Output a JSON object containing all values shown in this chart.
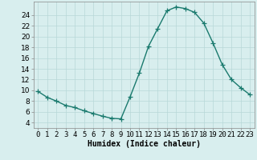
{
  "x": [
    0,
    1,
    2,
    3,
    4,
    5,
    6,
    7,
    8,
    9,
    10,
    11,
    12,
    13,
    14,
    15,
    16,
    17,
    18,
    19,
    20,
    21,
    22,
    23
  ],
  "y": [
    9.8,
    8.7,
    8.0,
    7.2,
    6.8,
    6.2,
    5.7,
    5.2,
    4.8,
    4.7,
    8.8,
    13.2,
    18.2,
    21.5,
    24.8,
    25.5,
    25.2,
    24.5,
    22.5,
    18.8,
    14.8,
    12.0,
    10.5,
    9.2
  ],
  "line_color": "#1a7a6e",
  "marker": "+",
  "marker_size": 4,
  "marker_edge_width": 0.9,
  "bg_color": "#d8eeee",
  "grid_color": "#b8d8d8",
  "xlabel": "Humidex (Indice chaleur)",
  "xlim": [
    -0.5,
    23.5
  ],
  "ylim": [
    3,
    26.5
  ],
  "yticks": [
    4,
    6,
    8,
    10,
    12,
    14,
    16,
    18,
    20,
    22,
    24
  ],
  "xticks": [
    0,
    1,
    2,
    3,
    4,
    5,
    6,
    7,
    8,
    9,
    10,
    11,
    12,
    13,
    14,
    15,
    16,
    17,
    18,
    19,
    20,
    21,
    22,
    23
  ],
  "xtick_labels": [
    "0",
    "1",
    "2",
    "3",
    "4",
    "5",
    "6",
    "7",
    "8",
    "9",
    "10",
    "11",
    "12",
    "13",
    "14",
    "15",
    "16",
    "17",
    "18",
    "19",
    "20",
    "21",
    "22",
    "23"
  ],
  "line_width": 1.0,
  "xlabel_fontsize": 7,
  "tick_fontsize": 6.5
}
